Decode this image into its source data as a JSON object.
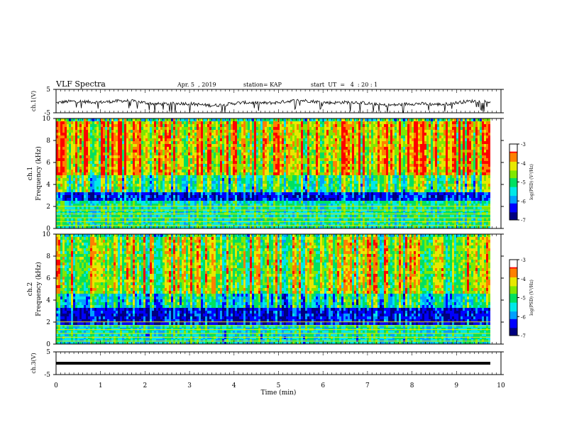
{
  "header": {
    "title": "VLF Spectra",
    "date": "Apr. 5  , 2019",
    "station": "station= KAP",
    "start": "start  UT  =   4  : 20 : 1"
  },
  "colors": {
    "spectrogram_scale": [
      "#000080",
      "#0000ff",
      "#00a0ff",
      "#00e8e8",
      "#00e060",
      "#80e800",
      "#e8e800",
      "#ff8000",
      "#ff0000",
      "#ffffff"
    ],
    "trace": "#000000"
  },
  "chart_data": [
    {
      "type": "line",
      "name": "ch1-waveform",
      "ylabel": "ch.1(V)",
      "ylim": [
        -5,
        5
      ],
      "yticks": [
        "5",
        "-5"
      ],
      "xlim": [
        0,
        10
      ],
      "y_range_visible": [
        -3,
        2
      ]
    },
    {
      "type": "heatmap",
      "name": "ch1-spectrogram",
      "ylabel": "ch.1\nFrequency (kHz)",
      "ylabel_line1": "ch.1",
      "ylabel_line2": "Frequency (kHz)",
      "ylim": [
        0,
        10
      ],
      "yticks": [
        "0",
        "2",
        "4",
        "6",
        "8",
        "10"
      ],
      "xlim": [
        0,
        9.8
      ],
      "colorbar": {
        "label": "log(PSD) (V²/Hz)",
        "ticks": [
          "-3",
          "-4",
          "-5",
          "-6",
          "-7"
        ],
        "range": [
          -7,
          -3
        ]
      },
      "bands_khz": [
        {
          "from": 0,
          "to": 2.6,
          "level": -5.2
        },
        {
          "from": 2.6,
          "to": 3.3,
          "level": -6.3
        },
        {
          "from": 3.3,
          "to": 5.0,
          "level": -4.9
        },
        {
          "from": 5.0,
          "to": 10,
          "level": -4.0
        }
      ]
    },
    {
      "type": "heatmap",
      "name": "ch2-spectrogram",
      "ylabel_line1": "ch.2",
      "ylabel_line2": "Frequency (kHz)",
      "ylim": [
        0,
        10
      ],
      "yticks": [
        "0",
        "2",
        "4",
        "6",
        "8",
        "10"
      ],
      "xlim": [
        0,
        9.8
      ],
      "colorbar": {
        "label": "log(PSD) (V²/Hz)",
        "ticks": [
          "-3",
          "-4",
          "-5",
          "-6",
          "-7"
        ],
        "range": [
          -7,
          -3
        ]
      },
      "bands_khz": [
        {
          "from": 0,
          "to": 2.0,
          "level": -5.3
        },
        {
          "from": 2.0,
          "to": 3.3,
          "level": -6.4
        },
        {
          "from": 3.3,
          "to": 4.8,
          "level": -5.3
        },
        {
          "from": 4.8,
          "to": 10,
          "level": -4.4
        }
      ]
    },
    {
      "type": "line",
      "name": "ch3-waveform",
      "ylabel": "ch.3(V)",
      "ylim": [
        -5,
        5
      ],
      "yticks": [
        "5",
        "-5"
      ],
      "xlim": [
        0,
        9.8
      ],
      "constant_value": 0
    }
  ],
  "xaxis": {
    "label": "Time  (min)",
    "ticks": [
      "0",
      "1",
      "2",
      "3",
      "4",
      "5",
      "6",
      "7",
      "8",
      "9",
      "10"
    ],
    "range": [
      0,
      10
    ]
  }
}
